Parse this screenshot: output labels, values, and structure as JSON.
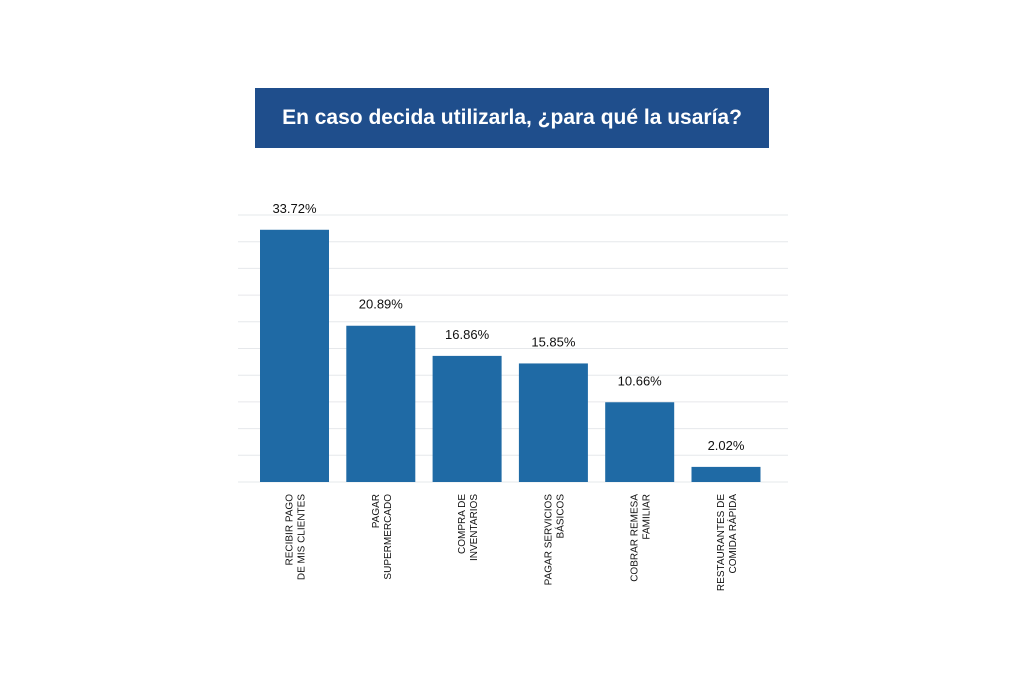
{
  "colors": {
    "banner": "#1f4e8c",
    "bar": "#1f6aa5",
    "grid": "#e6e8eb",
    "text": "#111111"
  },
  "chart_data": {
    "type": "bar",
    "title": "En caso decida utilizarla, ¿para qué la usaría?",
    "categories": [
      [
        "RECIBIR PAGO",
        "DE MIS CLIENTES"
      ],
      [
        "PAGAR",
        "SUPERMERCADO"
      ],
      [
        "COMPRA DE",
        "INVENTARIOS"
      ],
      [
        "PAGAR SERVICIOS",
        "BÁSICOS"
      ],
      [
        "COBRAR REMESA",
        "FAMILIAR"
      ],
      [
        "RESTAURANTES DE",
        "COMIDA RÁPIDA"
      ]
    ],
    "values": [
      33.72,
      20.89,
      16.86,
      15.85,
      10.66,
      2.02
    ],
    "value_labels": [
      "33.72%",
      "20.89%",
      "16.86%",
      "15.85%",
      "10.66%",
      "2.02%"
    ],
    "ylim": [
      0,
      35
    ],
    "grid": true,
    "legend": "none"
  }
}
